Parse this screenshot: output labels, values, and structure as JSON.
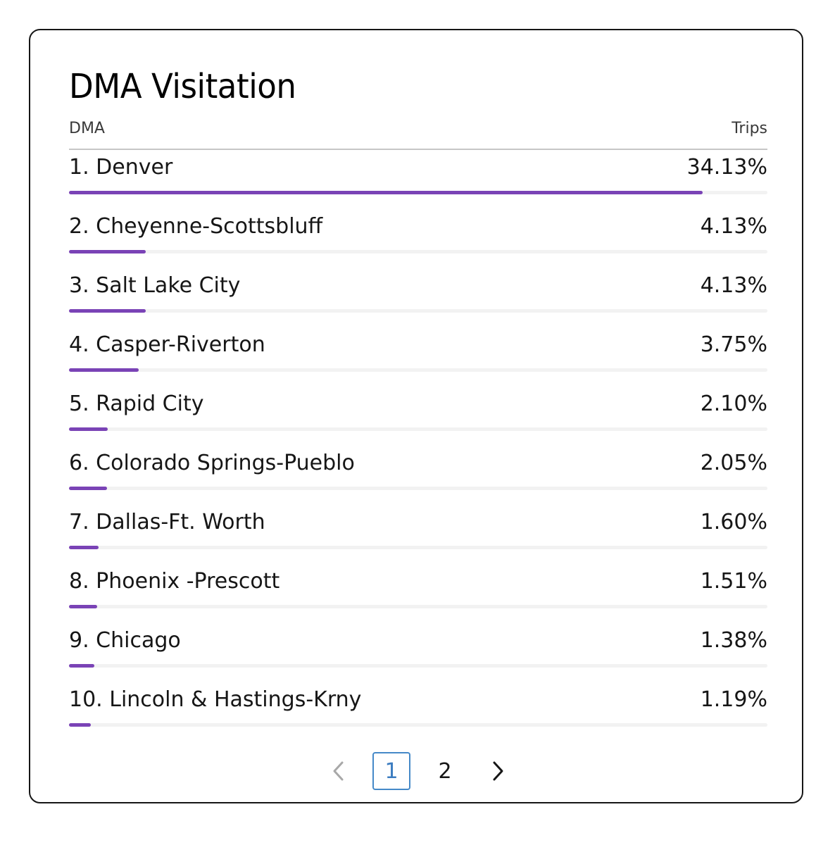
{
  "card": {
    "title": "DMA Visitation",
    "header": {
      "dma_label": "DMA",
      "trips_label": "Trips"
    },
    "rows": [
      {
        "label": "1. Denver",
        "value": "34.13%",
        "pct": 34.13
      },
      {
        "label": "2. Cheyenne-Scottsbluff",
        "value": "4.13%",
        "pct": 4.13
      },
      {
        "label": "3. Salt Lake City",
        "value": "4.13%",
        "pct": 4.13
      },
      {
        "label": "4. Casper-Riverton",
        "value": "3.75%",
        "pct": 3.75
      },
      {
        "label": "5. Rapid City",
        "value": "2.10%",
        "pct": 2.1
      },
      {
        "label": "6. Colorado Springs-Pueblo",
        "value": "2.05%",
        "pct": 2.05
      },
      {
        "label": "7. Dallas-Ft. Worth",
        "value": "1.60%",
        "pct": 1.6
      },
      {
        "label": "8. Phoenix -Prescott",
        "value": "1.51%",
        "pct": 1.51
      },
      {
        "label": "9. Chicago",
        "value": "1.38%",
        "pct": 1.38
      },
      {
        "label": "10. Lincoln & Hastings-Krny",
        "value": "1.19%",
        "pct": 1.19
      }
    ],
    "bar_scale_max_pct": 37.6,
    "colors": {
      "bar_fill": "#7a43b6",
      "bar_track": "#f2f2f2",
      "active_page": "#4589c8"
    }
  },
  "pagination": {
    "pages": [
      "1",
      "2"
    ],
    "current_page": "1",
    "prev_icon": "chevron-left-icon",
    "next_icon": "chevron-right-icon"
  }
}
